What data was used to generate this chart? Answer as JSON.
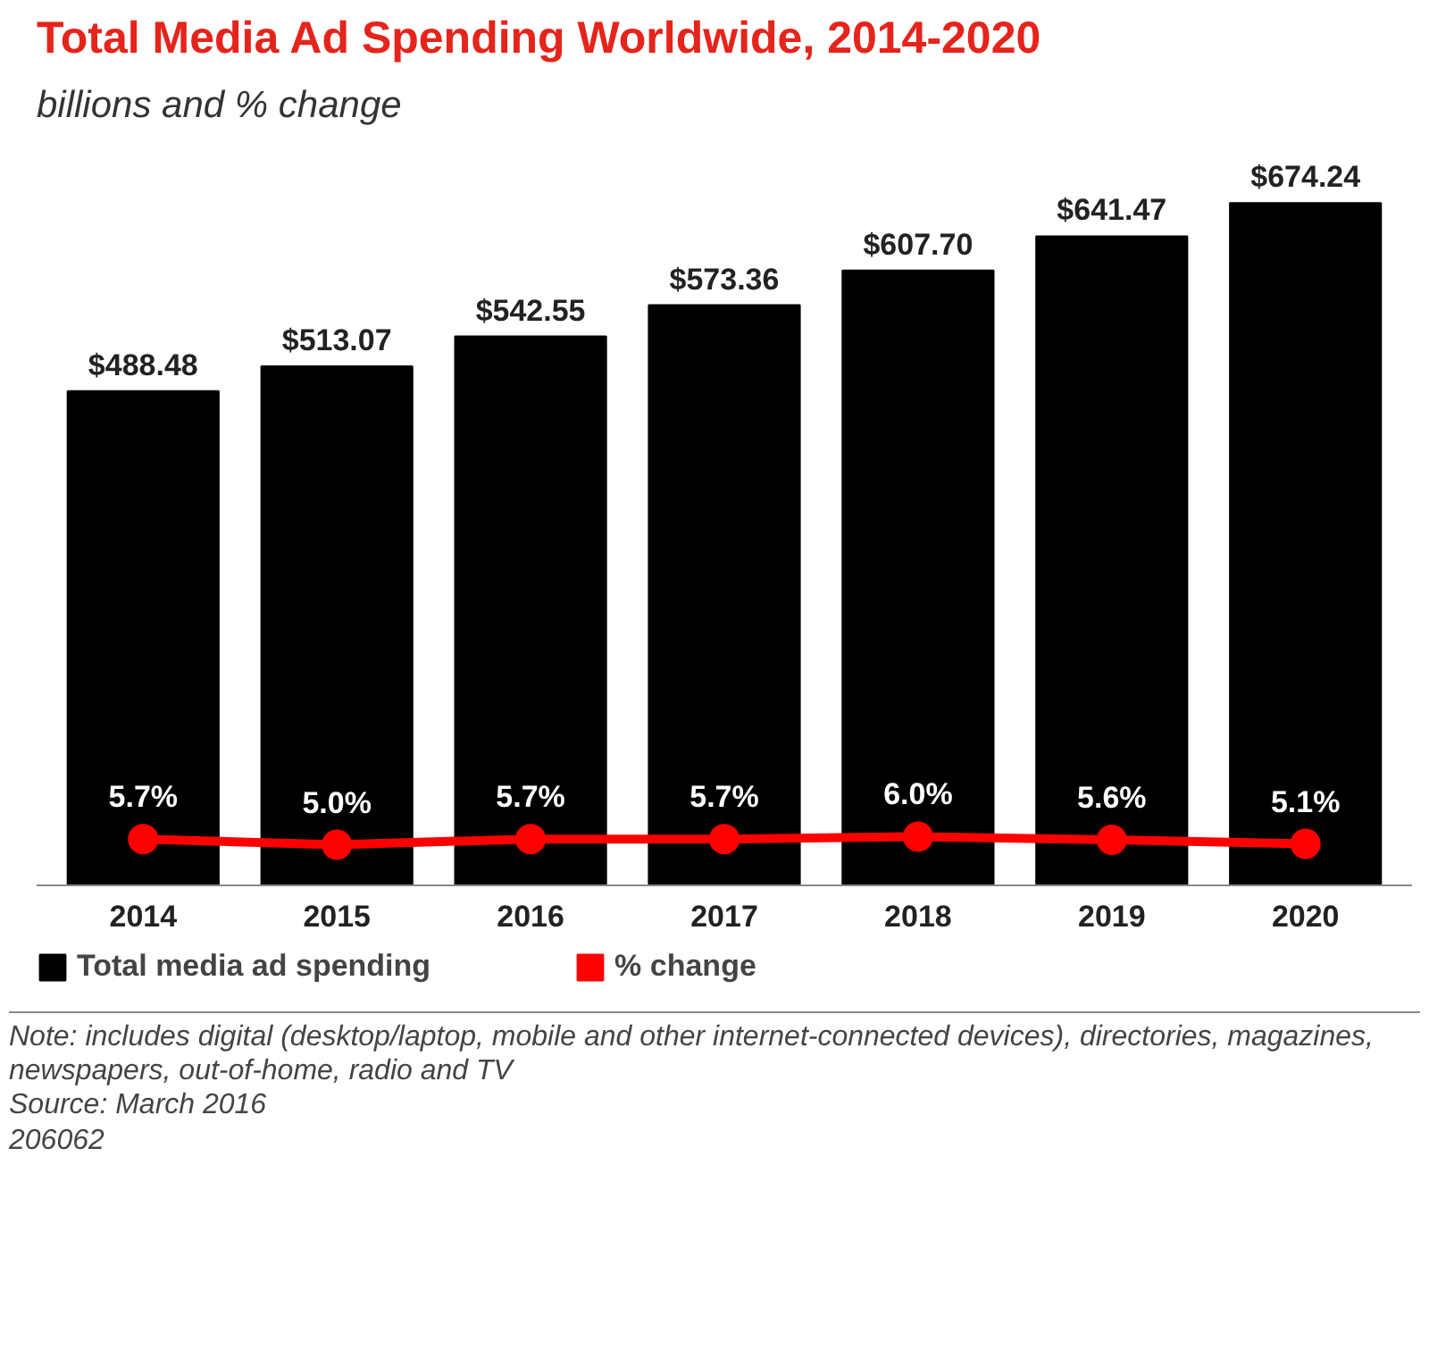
{
  "chart_data": {
    "type": "bar",
    "title": "Total Media Ad Spending Worldwide, 2014-2020",
    "subtitle": "billions and % change",
    "categories": [
      "2014",
      "2015",
      "2016",
      "2017",
      "2018",
      "2019",
      "2020"
    ],
    "series": [
      {
        "name": "Total media ad spending",
        "color": "#000000",
        "values": [
          488.48,
          513.07,
          542.55,
          573.36,
          607.7,
          641.47,
          674.24
        ],
        "value_labels": [
          "$488.48",
          "$513.07",
          "$542.55",
          "$573.36",
          "$607.70",
          "$641.47",
          "$674.24"
        ]
      },
      {
        "name": "% change",
        "type": "line",
        "axis": "y2",
        "color": "#ff0000",
        "marker": "circle",
        "values": [
          5.7,
          5.0,
          5.7,
          5.7,
          6.0,
          5.6,
          5.1
        ],
        "value_labels": [
          "5.7%",
          "5.0%",
          "5.7%",
          "5.7%",
          "6.0%",
          "5.6%",
          "5.1%"
        ]
      }
    ],
    "tick_labels": "x",
    "grid": false,
    "legend": "bottom",
    "annotations": [
      "Note: includes digital (desktop/laptop, mobile and other internet-connected devices), directories, magazines, newspapers, out-of-home, radio and TV",
      "Source: March 2016",
      "206062"
    ]
  }
}
